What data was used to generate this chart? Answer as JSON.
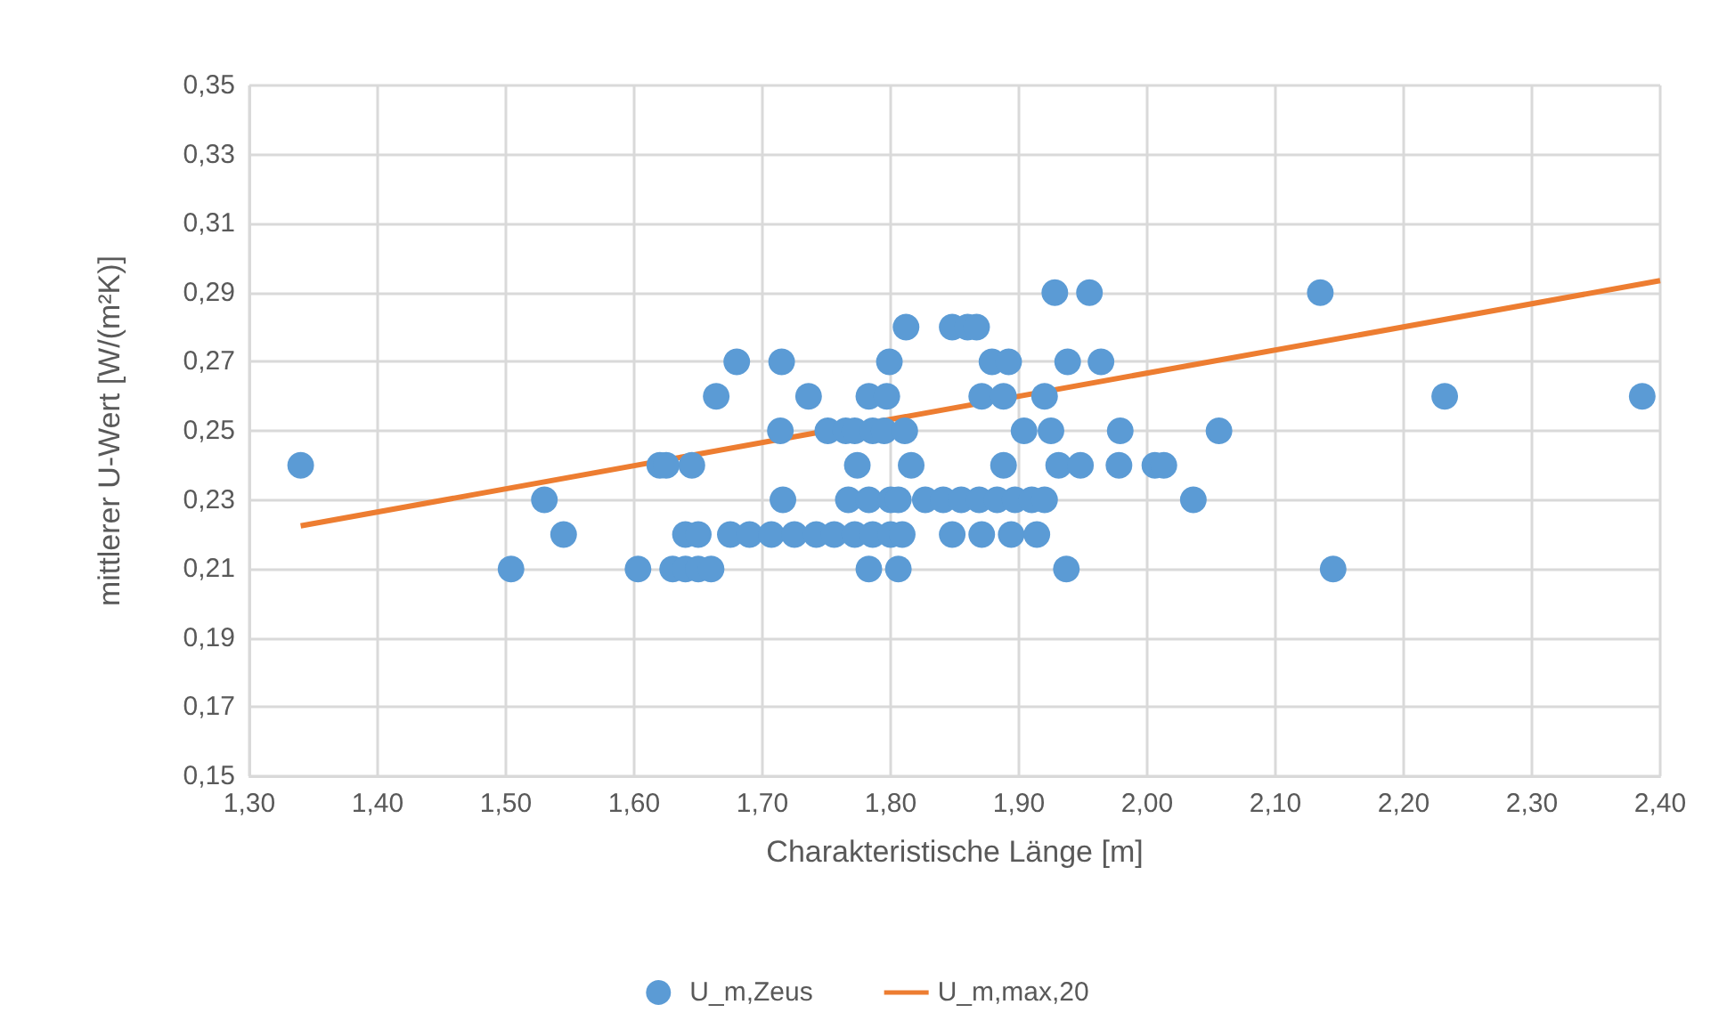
{
  "chart_data": {
    "type": "scatter",
    "xlabel": "Charakteristische Länge [m]",
    "ylabel": "mittlerer U-Wert [W/(m²K)]",
    "xlim": [
      1.3,
      2.4
    ],
    "xticks": [
      {
        "value": 1.3,
        "label": "1,30"
      },
      {
        "value": 1.4,
        "label": "1,40"
      },
      {
        "value": 1.5,
        "label": "1,50"
      },
      {
        "value": 1.6,
        "label": "1,60"
      },
      {
        "value": 1.7,
        "label": "1,70"
      },
      {
        "value": 1.8,
        "label": "1,80"
      },
      {
        "value": 1.9,
        "label": "1,90"
      },
      {
        "value": 2.0,
        "label": "2,00"
      },
      {
        "value": 2.1,
        "label": "2,10"
      },
      {
        "value": 2.2,
        "label": "2,20"
      },
      {
        "value": 2.3,
        "label": "2,30"
      },
      {
        "value": 2.4,
        "label": "2,40"
      }
    ],
    "ylim": [
      0.15,
      0.35
    ],
    "yticks": [
      {
        "value": 0.15,
        "label": "0,15"
      },
      {
        "value": 0.17,
        "label": "0,17"
      },
      {
        "value": 0.19,
        "label": "0,19"
      },
      {
        "value": 0.21,
        "label": "0,21"
      },
      {
        "value": 0.23,
        "label": "0,23"
      },
      {
        "value": 0.25,
        "label": "0,25"
      },
      {
        "value": 0.27,
        "label": "0,27"
      },
      {
        "value": 0.29,
        "label": "0,29"
      },
      {
        "value": 0.31,
        "label": "0,31"
      },
      {
        "value": 0.33,
        "label": "0,33"
      },
      {
        "value": 0.35,
        "label": "0,35"
      }
    ],
    "grid": true,
    "legend": "bottom",
    "marker": "circle",
    "series": [
      {
        "name": "U_m,Zeus",
        "color": "#5b9bd5",
        "x": [
          1.34,
          1.504,
          1.53,
          1.545,
          1.603,
          1.62,
          1.625,
          1.645,
          1.64,
          1.65,
          1.675,
          1.69,
          1.63,
          1.64,
          1.65,
          1.66,
          1.664,
          1.68,
          1.928,
          1.955,
          1.812,
          1.848,
          1.86,
          1.867,
          1.715,
          1.799,
          1.879,
          1.892,
          1.938,
          1.964,
          1.736,
          1.783,
          1.797,
          1.871,
          1.888,
          1.92,
          1.714,
          1.751,
          1.765,
          1.772,
          1.786,
          1.795,
          1.811,
          1.904,
          1.925,
          1.979,
          2.056,
          1.774,
          1.816,
          1.888,
          1.931,
          1.948,
          1.978,
          2.006,
          2.013,
          1.716,
          1.767,
          1.783,
          1.8,
          1.806,
          1.827,
          1.841,
          1.855,
          1.869,
          1.883,
          1.897,
          1.91,
          1.92,
          2.036,
          1.707,
          1.725,
          1.742,
          1.756,
          1.772,
          1.786,
          1.8,
          1.809,
          1.848,
          1.871,
          1.894,
          1.914,
          1.783,
          1.806,
          1.937,
          2.135,
          2.232,
          2.386,
          2.145
        ],
        "values": [
          0.24,
          0.21,
          0.23,
          0.22,
          0.21,
          0.24,
          0.24,
          0.24,
          0.22,
          0.22,
          0.22,
          0.22,
          0.21,
          0.21,
          0.21,
          0.21,
          0.26,
          0.27,
          0.29,
          0.29,
          0.28,
          0.28,
          0.28,
          0.28,
          0.27,
          0.27,
          0.27,
          0.27,
          0.27,
          0.27,
          0.26,
          0.26,
          0.26,
          0.26,
          0.26,
          0.26,
          0.25,
          0.25,
          0.25,
          0.25,
          0.25,
          0.25,
          0.25,
          0.25,
          0.25,
          0.25,
          0.25,
          0.24,
          0.24,
          0.24,
          0.24,
          0.24,
          0.24,
          0.24,
          0.24,
          0.23,
          0.23,
          0.23,
          0.23,
          0.23,
          0.23,
          0.23,
          0.23,
          0.23,
          0.23,
          0.23,
          0.23,
          0.23,
          0.23,
          0.22,
          0.22,
          0.22,
          0.22,
          0.22,
          0.22,
          0.22,
          0.22,
          0.22,
          0.22,
          0.22,
          0.22,
          0.21,
          0.21,
          0.21,
          0.29,
          0.26,
          0.26,
          0.21
        ]
      },
      {
        "name": "U_m,max,20",
        "type": "line",
        "marker": "none",
        "color": "#ed7d31",
        "x": [
          1.34,
          2.4
        ],
        "values": [
          0.2225,
          0.2935
        ]
      }
    ]
  }
}
